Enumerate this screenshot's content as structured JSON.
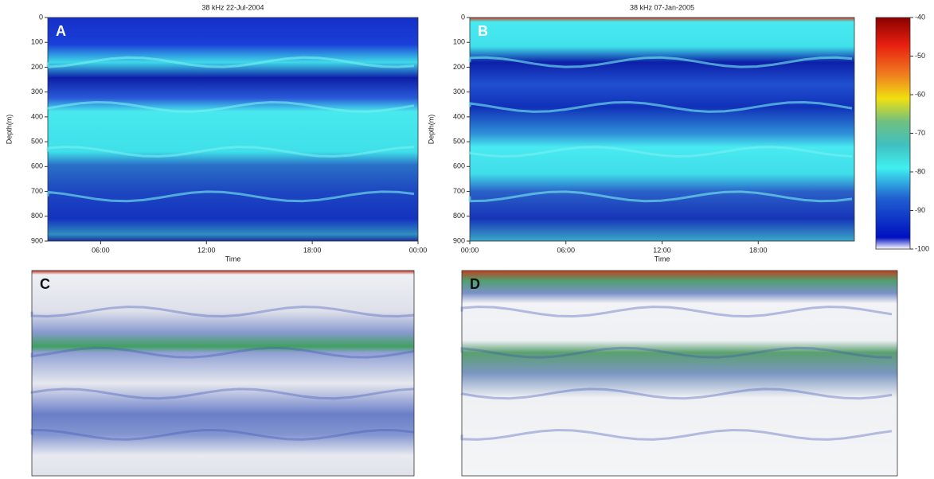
{
  "chart_data": [
    {
      "type": "echogram",
      "panel_label": "A",
      "title": "38 kHz   22-Jul-2004",
      "y_label": "Depth(m)",
      "x_label": "Time",
      "ylim": [
        0,
        900
      ],
      "yticks": [
        0,
        100,
        200,
        300,
        400,
        500,
        600,
        700,
        800,
        900
      ],
      "xlim": [
        3,
        24
      ],
      "xticks": [
        {
          "value": 6,
          "label": "06:00"
        },
        {
          "value": 12,
          "label": "12:00"
        },
        {
          "value": 18,
          "label": "18:00"
        },
        {
          "value": 24,
          "label": "00:00"
        }
      ]
    },
    {
      "type": "echogram",
      "panel_label": "B",
      "title": "38 kHz   07-Jan-2005",
      "y_label": "Depth(m)",
      "x_label": "Time",
      "ylim": [
        0,
        900
      ],
      "yticks": [
        0,
        100,
        200,
        300,
        400,
        500,
        600,
        700,
        800,
        900
      ],
      "xlim": [
        0,
        24
      ],
      "xticks": [
        {
          "value": 0,
          "label": "00:00"
        },
        {
          "value": 6,
          "label": "06:00"
        },
        {
          "value": 12,
          "label": "12:00"
        },
        {
          "value": 18,
          "label": "18:00"
        }
      ]
    },
    {
      "type": "colorbar",
      "clim": [
        -100,
        -40
      ],
      "cticks": [
        -40,
        -50,
        -60,
        -70,
        -80,
        -90,
        -100
      ]
    },
    {
      "type": "echogram",
      "panel_label": "C"
    },
    {
      "type": "echogram",
      "panel_label": "D"
    }
  ]
}
